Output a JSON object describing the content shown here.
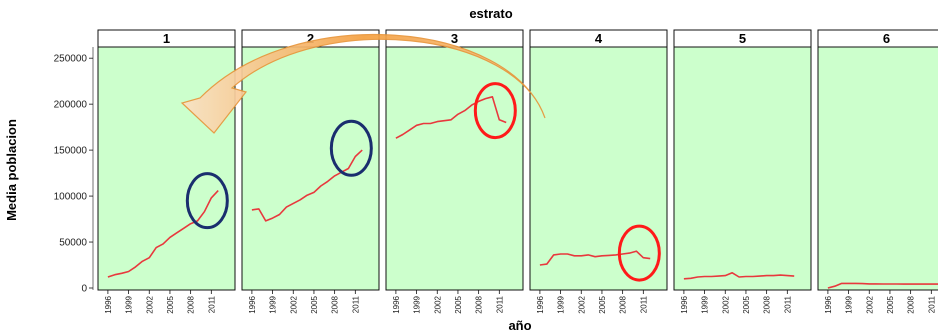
{
  "chart_data": {
    "type": "line",
    "title": "estrato",
    "xlabel": "año",
    "ylabel": "Media poblacion",
    "ylim": [
      0,
      260000
    ],
    "y_ticks": [
      0,
      50000,
      100000,
      150000,
      200000,
      250000
    ],
    "y_tick_labels": [
      "0",
      "50000",
      "100000",
      "150000",
      "200000",
      "250000"
    ],
    "x_ticks": [
      1996,
      1999,
      2002,
      2005,
      2008,
      2011
    ],
    "x_tick_labels": [
      "1996",
      "1999",
      "2002",
      "2005",
      "2008",
      "2011"
    ],
    "xlim": [
      1995,
      2014
    ],
    "colors": {
      "panel_bg": "#ccffcc",
      "line": "#e8383d",
      "blue_circle": "#1a2e6e",
      "red_circle": "#ff1a1a",
      "arrow": "#f5a040"
    },
    "grid": false,
    "panels": [
      {
        "strip": "1",
        "x": [
          1996,
          1997,
          1998,
          1999,
          2000,
          2001,
          2002,
          2003,
          2004,
          2005,
          2006,
          2007,
          2008,
          2009,
          2010,
          2011,
          2012
        ],
        "y": [
          12000,
          14500,
          16000,
          18000,
          23000,
          29000,
          33000,
          44000,
          48000,
          55000,
          60000,
          65000,
          70000,
          73000,
          83000,
          98000,
          106000
        ]
      },
      {
        "strip": "2",
        "x": [
          1996,
          1997,
          1998,
          1999,
          2000,
          2001,
          2002,
          2003,
          2004,
          2005,
          2006,
          2007,
          2008,
          2009,
          2010,
          2011,
          2012
        ],
        "y": [
          85000,
          86000,
          73000,
          76000,
          80000,
          88000,
          92000,
          96000,
          101000,
          104000,
          111000,
          116000,
          122000,
          126000,
          130000,
          143000,
          150000
        ]
      },
      {
        "strip": "3",
        "x": [
          1996,
          1997,
          1998,
          1999,
          2000,
          2001,
          2002,
          2003,
          2004,
          2005,
          2006,
          2007,
          2008,
          2009,
          2010,
          2011,
          2012
        ],
        "y": [
          163000,
          167000,
          172000,
          177000,
          179000,
          179000,
          181000,
          182000,
          183000,
          189000,
          193000,
          199000,
          203000,
          206000,
          208000,
          183000,
          180000
        ]
      },
      {
        "strip": "4",
        "x": [
          1996,
          1997,
          1998,
          1999,
          2000,
          2001,
          2002,
          2003,
          2004,
          2005,
          2006,
          2007,
          2008,
          2009,
          2010,
          2011,
          2012
        ],
        "y": [
          25000,
          26000,
          36000,
          37000,
          37000,
          35000,
          35000,
          36000,
          34000,
          35000,
          35500,
          36000,
          37000,
          38000,
          40000,
          33000,
          32000
        ]
      },
      {
        "strip": "5",
        "x": [
          1996,
          1997,
          1998,
          1999,
          2000,
          2001,
          2002,
          2003,
          2004,
          2005,
          2006,
          2007,
          2008,
          2009,
          2010,
          2011,
          2012
        ],
        "y": [
          10000,
          10500,
          12000,
          12500,
          12500,
          13000,
          13500,
          16500,
          12000,
          12500,
          12500,
          13000,
          13500,
          13500,
          14000,
          13500,
          13000
        ]
      },
      {
        "strip": "6",
        "x": [
          1996,
          1997,
          1998,
          1999,
          2000,
          2001,
          2002,
          2003,
          2004,
          2005,
          2006,
          2007,
          2008,
          2009,
          2010,
          2011,
          2012
        ],
        "y": [
          0,
          2000,
          5000,
          5000,
          5000,
          4800,
          4500,
          4500,
          4300,
          4300,
          4300,
          4200,
          4200,
          4200,
          4300,
          4200,
          4200
        ]
      }
    ],
    "annotations": [
      {
        "shape": "ellipse",
        "color": "blue",
        "panel": "1",
        "x": 2011,
        "y": 95000
      },
      {
        "shape": "ellipse",
        "color": "blue",
        "panel": "2",
        "x": 2011,
        "y": 152000
      },
      {
        "shape": "ellipse",
        "color": "red",
        "panel": "3",
        "x": 2011,
        "y": 193000
      },
      {
        "shape": "ellipse",
        "color": "red",
        "panel": "4",
        "x": 2011,
        "y": 38000
      },
      {
        "shape": "curved-arrow",
        "color": "orange",
        "from_panel": "3",
        "to_panel": "1"
      }
    ]
  }
}
